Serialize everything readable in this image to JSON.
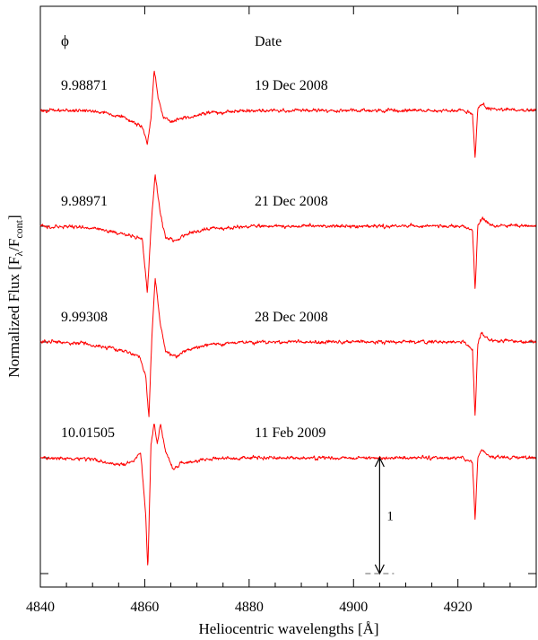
{
  "chart_data": {
    "type": "line",
    "xlabel": "Heliocentric wavelengths [Å]",
    "ylabel_parts": {
      "main": "Normalized Flux [F",
      "sub1": "λ",
      "mid": "/F",
      "sub2": "cont",
      "end": "]"
    },
    "xlim": [
      4840,
      4935
    ],
    "xticks": [
      4840,
      4860,
      4880,
      4900,
      4920
    ],
    "grid": false,
    "header": {
      "phase": "ϕ",
      "date": "Date"
    },
    "scale_bar": {
      "label": "1",
      "x": 4905,
      "value": 1
    },
    "line_color": "#ff0000",
    "series": [
      {
        "phase": "9.98871",
        "date": "19 Dec 2008",
        "offset": 3,
        "profile": [
          [
            4840,
            1.0
          ],
          [
            4848,
            1.0
          ],
          [
            4852,
            0.985
          ],
          [
            4856,
            0.94
          ],
          [
            4858,
            0.89
          ],
          [
            4859.5,
            0.86
          ],
          [
            4860.5,
            0.72
          ],
          [
            4861.2,
            0.93
          ],
          [
            4861.8,
            1.36
          ],
          [
            4862.5,
            1.12
          ],
          [
            4863.5,
            0.95
          ],
          [
            4865,
            0.9
          ],
          [
            4867,
            0.93
          ],
          [
            4872,
            0.98
          ],
          [
            4880,
            1.0
          ],
          [
            4921,
            1.0
          ],
          [
            4922.8,
            0.97
          ],
          [
            4923.3,
            0.58
          ],
          [
            4923.8,
            1.02
          ],
          [
            4924.6,
            1.05
          ],
          [
            4926,
            1.01
          ],
          [
            4935,
            1.0
          ]
        ]
      },
      {
        "phase": "9.98971",
        "date": "21 Dec 2008",
        "offset": 2,
        "profile": [
          [
            4840,
            1.0
          ],
          [
            4848,
            0.99
          ],
          [
            4852,
            0.97
          ],
          [
            4856,
            0.93
          ],
          [
            4858,
            0.91
          ],
          [
            4859.5,
            0.9
          ],
          [
            4860.5,
            0.42
          ],
          [
            4861.3,
            1.05
          ],
          [
            4862,
            1.45
          ],
          [
            4863,
            1.1
          ],
          [
            4864,
            0.9
          ],
          [
            4866,
            0.88
          ],
          [
            4868,
            0.94
          ],
          [
            4873,
            0.98
          ],
          [
            4880,
            1.0
          ],
          [
            4921,
            1.0
          ],
          [
            4922.8,
            0.96
          ],
          [
            4923.3,
            0.45
          ],
          [
            4923.8,
            1.0
          ],
          [
            4924.6,
            1.07
          ],
          [
            4926,
            1.01
          ],
          [
            4935,
            1.0
          ]
        ]
      },
      {
        "phase": "9.99308",
        "date": "28 Dec 2008",
        "offset": 1,
        "profile": [
          [
            4840,
            1.0
          ],
          [
            4848,
            0.99
          ],
          [
            4853,
            0.95
          ],
          [
            4857,
            0.91
          ],
          [
            4859,
            0.87
          ],
          [
            4860.2,
            0.7
          ],
          [
            4860.8,
            0.35
          ],
          [
            4861.4,
            1.08
          ],
          [
            4862,
            1.55
          ],
          [
            4863,
            1.15
          ],
          [
            4864,
            0.92
          ],
          [
            4866,
            0.87
          ],
          [
            4868,
            0.93
          ],
          [
            4873,
            0.98
          ],
          [
            4880,
            1.0
          ],
          [
            4921,
            1.0
          ],
          [
            4922.8,
            0.94
          ],
          [
            4923.3,
            0.35
          ],
          [
            4923.8,
            1.0
          ],
          [
            4924.6,
            1.08
          ],
          [
            4926,
            1.01
          ],
          [
            4935,
            1.0
          ]
        ]
      },
      {
        "phase": "10.01505",
        "date": "11 Feb 2009",
        "offset": 0,
        "profile": [
          [
            4840,
            1.0
          ],
          [
            4849,
            0.99
          ],
          [
            4853,
            0.96
          ],
          [
            4856,
            0.94
          ],
          [
            4858,
            0.97
          ],
          [
            4859.2,
            1.05
          ],
          [
            4860.2,
            0.5
          ],
          [
            4860.6,
            0.02
          ],
          [
            4861.2,
            1.1
          ],
          [
            4861.8,
            1.3
          ],
          [
            4862.4,
            1.12
          ],
          [
            4863,
            1.3
          ],
          [
            4864,
            1.05
          ],
          [
            4865.5,
            0.9
          ],
          [
            4867,
            0.95
          ],
          [
            4872,
            0.99
          ],
          [
            4880,
            1.0
          ],
          [
            4921,
            1.0
          ],
          [
            4922.8,
            0.96
          ],
          [
            4923.3,
            0.45
          ],
          [
            4923.8,
            1.0
          ],
          [
            4924.6,
            1.07
          ],
          [
            4926,
            1.01
          ],
          [
            4935,
            1.0
          ]
        ]
      }
    ]
  }
}
